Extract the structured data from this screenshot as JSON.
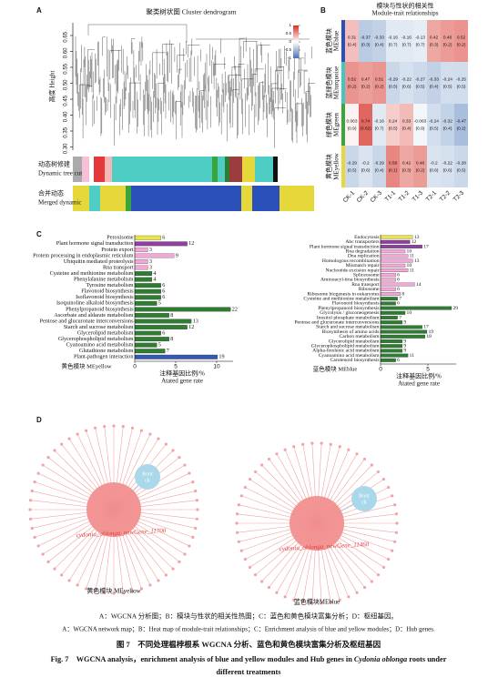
{
  "panel_a": {
    "label": "A",
    "title": "聚类树状图 Cluster dendrogram",
    "ylabel": "高度 Height",
    "ylim": [
      0.29,
      0.69
    ],
    "yticks": [
      {
        "value": 0.3,
        "label": "0.30"
      },
      0.35,
      {
        "value": 0.4,
        "label": "0.40"
      },
      0.45,
      {
        "value": 0.5,
        "label": "0.50"
      },
      0.55,
      {
        "value": 0.6,
        "label": "0.60"
      },
      0.65
    ],
    "rows": [
      [
        "动态树修建",
        "Dynamic tree cut"
      ],
      [
        "合并动态",
        "Merged dynamic"
      ]
    ]
  },
  "panel_b": {
    "label": "B",
    "title_cn": "模块与性状的相关性",
    "title_en": "Module-trait relationships",
    "columns": [
      "CK-1",
      "CK-2",
      "CK-3",
      "T1-1",
      "T1-2",
      "T1-3",
      "T2-1",
      "T2-2",
      "T2-3"
    ],
    "colormap": [
      "#4575b4",
      "#ffffff",
      "#d73027"
    ],
    "colorbar_ticks": [
      1,
      0.5,
      0,
      -0.5,
      -1
    ],
    "rows": [
      {
        "name_cn": "蓝色模块",
        "name": "MEblue",
        "color": "#2b4fb8",
        "values": [
          0.31,
          -0.37,
          -0.33,
          -0.16,
          -0.16,
          -0.13,
          0.42,
          0.48,
          0.52
        ],
        "p_labels": [
          "(0.4)",
          "(0.3)",
          "(0.4)",
          "(0.7)",
          "(0.7)",
          "(0.7)",
          "(0.3)",
          "(0.2)",
          "(0.2)"
        ]
      },
      {
        "name_cn": "蓝绿色模块",
        "name": "MEturquoise",
        "color": "#40c8c0",
        "values": [
          0.52,
          0.47,
          0.51,
          -0.29,
          -0.22,
          -0.27,
          -0.33,
          -0.24,
          -0.25
        ],
        "p_labels": [
          "(0.2)",
          "(0.2)",
          "(0.2)",
          "(0.5)",
          "(0.6)",
          "(0.5)",
          "(0.4)",
          "(0.5)",
          "(0.5)"
        ]
      },
      {
        "name_cn": "绿色模块",
        "name": "MEgreen",
        "color": "#3aa53a",
        "values": [
          0.063,
          0.74,
          -0.16,
          0.24,
          0.33,
          -0.063,
          -0.24,
          -0.32,
          -0.47
        ],
        "p_labels": [
          "(0.9)",
          "(0.02)",
          "(0.7)",
          "(0.5)",
          "(0.4)",
          "(0.9)",
          "(0.5)",
          "(0.4)",
          "(0.2)"
        ]
      },
      {
        "name_cn": "黄色模块",
        "name": "MEyellow",
        "color": "#e6d83a",
        "values": [
          -0.29,
          -0.2,
          -0.29,
          0.58,
          0.42,
          0.48,
          -0.2,
          -0.22,
          -0.28
        ],
        "p_labels": [
          "(0.5)",
          "(0.6)",
          "(0.4)",
          "(0.1)",
          "(0.3)",
          "(0.2)",
          "(0.6)",
          "(0.6)",
          "(0.5)"
        ]
      }
    ]
  },
  "panel_c_label": "C",
  "chart_data": [
    {
      "type": "bar",
      "module_label": "黄色模块 MEyellow",
      "xlabel_cn": "注释基因比例/%",
      "xlabel_en": "Atated gene rate",
      "xlim": [
        0,
        12
      ],
      "xticks": [
        0,
        5,
        10
      ],
      "categories": [
        "Peroxisome",
        "Plant hormone signal transduction",
        "Protein export",
        "Protein processing in endoplasmic reticulum",
        "Ubiquitin mediated proteolysis",
        "Rna transport",
        "Cysteine and methionine metabolism",
        "Phenylalanine metabolism",
        "Tyrosine metabolism",
        "Flavonoid biosynthesis",
        "Isoflavonoid biosynthesis",
        "Isoquinoline alkaloid biosynthesis",
        "Phenylpropanoid biosynthesis",
        "Ascorbate and aldarate metabolism",
        "Pentose and glucuronate interconversions",
        "Starch and sucrose metabolism",
        "Glycerolipid metabolism",
        "Glycerophospholipid metabolism",
        "Cyanoamino acid metabolism",
        "Glutathione metabolism",
        "Plant-pathogen interaction"
      ],
      "values": [
        3.2,
        6.4,
        1.6,
        4.8,
        1.6,
        1.6,
        2.1,
        2.1,
        3.2,
        3.2,
        3.2,
        2.7,
        11.7,
        4.2,
        6.9,
        6.4,
        3.2,
        4.2,
        2.7,
        3.7,
        10.1
      ],
      "gene_counts": [
        6,
        12,
        3,
        9,
        3,
        3,
        4,
        4,
        6,
        6,
        6,
        5,
        22,
        8,
        13,
        12,
        6,
        8,
        5,
        7,
        19
      ],
      "colors": [
        "#ece34a",
        "#8e3fa0",
        "#f3a7d6",
        "#f3a7d6",
        "#f3a7d6",
        "#f3a7d6",
        "#2f7d32",
        "#2f7d32",
        "#2f7d32",
        "#2f7d32",
        "#2f7d32",
        "#2f7d32",
        "#2f7d32",
        "#2f7d32",
        "#2f7d32",
        "#2f7d32",
        "#2f7d32",
        "#2f7d32",
        "#2f7d32",
        "#2f7d32",
        "#3559b0"
      ]
    },
    {
      "type": "bar",
      "module_label": "蓝色模块 MEblue",
      "xlabel_cn": "注释基因比例/%",
      "xlabel_en": "Atated gene rate",
      "xlim": [
        0,
        8
      ],
      "xticks": [
        0,
        5
      ],
      "categories": [
        "Endocytosis",
        "Abc transporters",
        "Plant hormone signal transduction",
        "Rna degradation",
        "Dna replication",
        "Homologous recombination",
        "Mismatch repair",
        "Nucleotide excision repair",
        "Spliceosome",
        "Aminoacyl-trna biosynthesis",
        "Rna transport",
        "Ribosome",
        "Ribosome biogenesis in eukaryotes",
        "Cysteine and methionine metabolism",
        "Flavonoid biosynthesis",
        "Phenylpropanoid biosynthesis",
        "Glycolysis / gluconeogenesis",
        "Inositol phosphate metabolism",
        "Pentose and glucuronate interconversions",
        "Starch and sucrose metabolism",
        "Biosynthesis of amino acids",
        "Carbon metabolism",
        "Glycerolipid metabolism",
        "Glycerophospholipid metabolism",
        "Alpha-linolenic acid metabolism",
        "Cyanoamino acid metabolism",
        "Carotenoid biosynthesis"
      ],
      "values": [
        3.4,
        3.1,
        4.4,
        2.6,
        2.9,
        3.4,
        2.6,
        2.9,
        1.6,
        1.6,
        3.6,
        1.6,
        2.1,
        1.8,
        1.6,
        7.5,
        2.6,
        1.8,
        2.3,
        4.4,
        4.9,
        4.7,
        2.3,
        2.3,
        2.3,
        2.9,
        1.6
      ],
      "gene_counts": [
        13,
        12,
        17,
        10,
        11,
        13,
        10,
        11,
        6,
        6,
        14,
        6,
        8,
        7,
        6,
        29,
        10,
        7,
        9,
        17,
        19,
        18,
        9,
        9,
        9,
        11,
        6
      ],
      "colors": [
        "#ece34a",
        "#8e3fa0",
        "#8e3fa0",
        "#f3a7d6",
        "#f3a7d6",
        "#f3a7d6",
        "#f3a7d6",
        "#f3a7d6",
        "#f3a7d6",
        "#f3a7d6",
        "#f3a7d6",
        "#f3a7d6",
        "#f3a7d6",
        "#2f7d32",
        "#2f7d32",
        "#2f7d32",
        "#2f7d32",
        "#2f7d32",
        "#2f7d32",
        "#2f7d32",
        "#2f7d32",
        "#2f7d32",
        "#2f7d32",
        "#2f7d32",
        "#2f7d32",
        "#2f7d32",
        "#2f7d32"
      ]
    }
  ],
  "panel_d": {
    "label": "D",
    "networks": [
      {
        "hub": "cydonia_oblonga_newGene_11700",
        "root_label": "Root",
        "ck_label": "ck",
        "module_label": "黄色模块 MEyellow"
      },
      {
        "hub": "cydonia_oblonga_newGene_11460",
        "root_label": "Root",
        "ck_label": "ck",
        "module_label": "蓝色模块MEblue"
      }
    ]
  },
  "caption": {
    "legend_cn": "A：WGCNA 分析图；B：模块与性状的相关性热图；C：蓝色和黄色模块富集分析；D：枢纽基因。",
    "legend_en": "A：WGCNA network map；B：Heat map of module-trait relationships；C：Enrichment analysis of blue and yellow modules；D：Hub genes.",
    "title_cn": "图 7　不同处理榅桲根系 WGCNA 分析、蓝色和黄色模块富集分析及枢纽基因",
    "title_en": [
      "Fig. 7　WGCNA analysis，enrichment analysis of blue and yellow modules and Hub genes in ",
      "Cydonia oblonga",
      " roots under",
      "different treatments"
    ]
  }
}
